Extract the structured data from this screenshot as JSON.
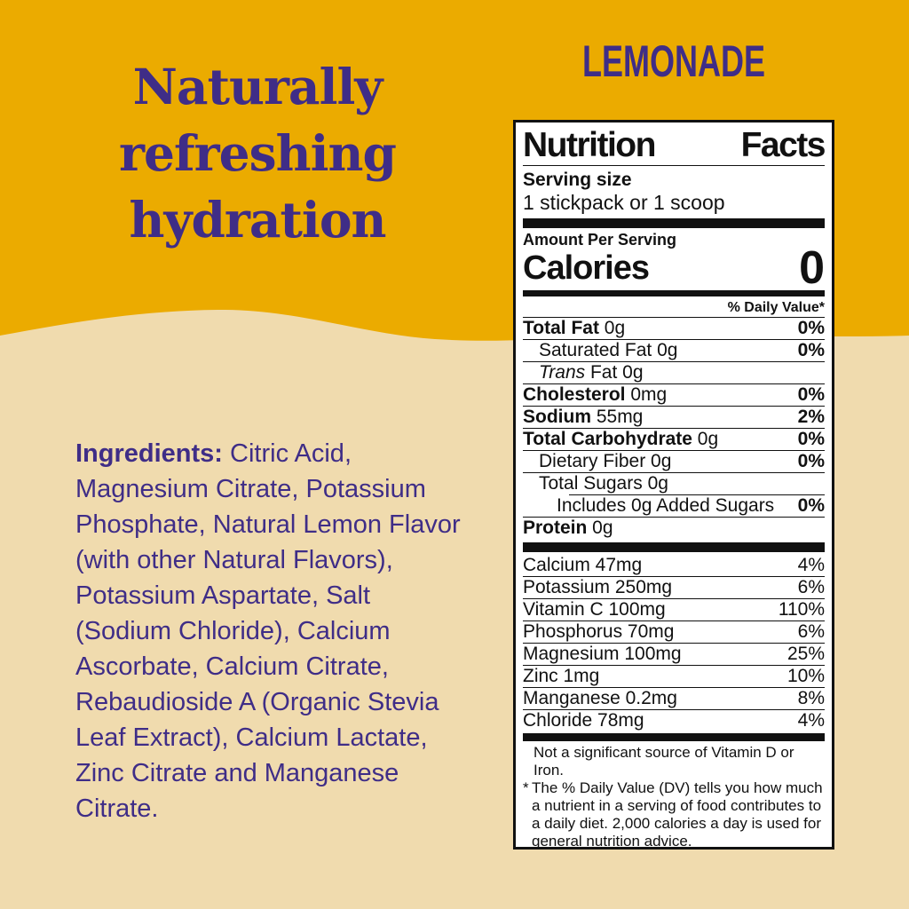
{
  "colors": {
    "yellow": "#EBAB00",
    "cream": "#F0DBAE",
    "purple": "#3F2D87",
    "label_ink": "#111111",
    "label_bg": "#FFFFFF"
  },
  "hero": {
    "headline_lines": [
      "Naturally",
      "refreshing",
      "hydration"
    ],
    "flavor": "LEMONADE"
  },
  "ingredients": {
    "label": "Ingredients:",
    "text": " Citric Acid, Magnesium Citrate, Potassium Phosphate, Natural Lemon Flavor (with other Natural Flavors), Potassium Aspartate, Salt (Sodium Chloride), Calcium Ascorbate, Calcium Citrate, Rebaudioside A (Organic Stevia Leaf Extract), Calcium Lactate, Zinc Citrate and Manganese Citrate."
  },
  "nutrition": {
    "title_words": [
      "Nutrition",
      "Facts"
    ],
    "serving_size_label": "Serving size",
    "serving_size_value": "1 stickpack or 1 scoop",
    "amount_per_serving": "Amount Per Serving",
    "calories_label": "Calories",
    "calories_value": "0",
    "daily_value_header": "% Daily Value*",
    "main_rows": [
      {
        "name": "Total Fat",
        "amount": "0g",
        "dv": "0%",
        "bold": true,
        "indent": 0
      },
      {
        "name": "Saturated Fat",
        "amount": "0g",
        "dv": "0%",
        "bold": false,
        "indent": 1
      },
      {
        "name": "Trans Fat",
        "amount": "0g",
        "dv": "",
        "bold": false,
        "indent": 1,
        "italic_first": true
      },
      {
        "name": "Cholesterol",
        "amount": "0mg",
        "dv": "0%",
        "bold": true,
        "indent": 0
      },
      {
        "name": "Sodium",
        "amount": "55mg",
        "dv": "2%",
        "bold": true,
        "indent": 0
      },
      {
        "name": "Total Carbohydrate",
        "amount": "0g",
        "dv": "0%",
        "bold": true,
        "indent": 0
      },
      {
        "name": "Dietary Fiber",
        "amount": "0g",
        "dv": "0%",
        "bold": false,
        "indent": 1
      },
      {
        "name": "Total Sugars",
        "amount": "0g",
        "dv": "",
        "bold": false,
        "indent": 1
      },
      {
        "name": "Includes 0g Added Sugars",
        "amount": "",
        "dv": "0%",
        "bold": false,
        "indent": 2,
        "sep": "indent"
      },
      {
        "name": "Protein",
        "amount": "0g",
        "dv": "",
        "bold": true,
        "indent": 0
      }
    ],
    "vitamin_rows": [
      {
        "name": "Calcium",
        "amount": "47mg",
        "dv": "4%"
      },
      {
        "name": "Potassium",
        "amount": "250mg",
        "dv": "6%"
      },
      {
        "name": "Vitamin C",
        "amount": "100mg",
        "dv": "110%"
      },
      {
        "name": "Phosphorus",
        "amount": "70mg",
        "dv": "6%"
      },
      {
        "name": "Magnesium",
        "amount": "100mg",
        "dv": "25%"
      },
      {
        "name": "Zinc",
        "amount": "1mg",
        "dv": "10%"
      },
      {
        "name": "Manganese",
        "amount": "0.2mg",
        "dv": "8%"
      },
      {
        "name": "Chloride",
        "amount": "78mg",
        "dv": "4%"
      }
    ],
    "footnotes": {
      "not_significant": "Not a significant source of Vitamin D or Iron.",
      "asterisk": "*",
      "dv_note": "The % Daily Value (DV) tells you how much a nutrient in a serving of food contributes to a daily diet. 2,000 calories a day is used for general nutrition advice."
    }
  }
}
